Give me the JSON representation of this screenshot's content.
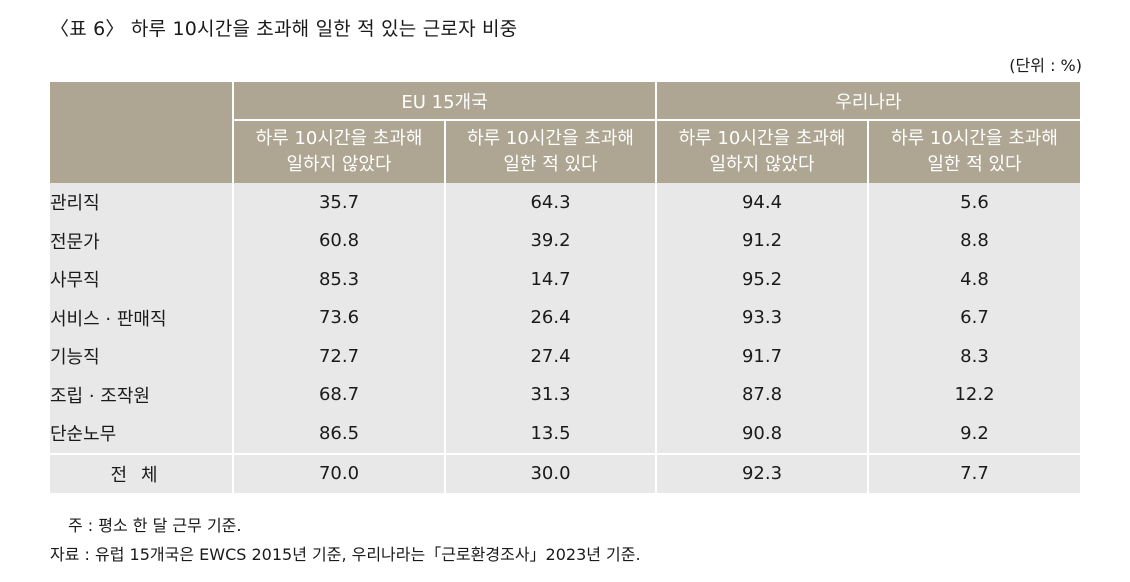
{
  "title": "〈표 6〉 하루 10시간을 초과해 일한 적 있는 근로자 비중",
  "unit": "(단위 : %)",
  "table": {
    "group_headers": [
      "EU 15개국",
      "우리나라"
    ],
    "sub_headers": [
      [
        "하루 10시간을 초과해",
        "일하지 않았다"
      ],
      [
        "하루 10시간을 초과해",
        "일한 적 있다"
      ],
      [
        "하루 10시간을 초과해",
        "일하지 않았다"
      ],
      [
        "하루 10시간을 초과해",
        "일한 적 있다"
      ]
    ],
    "rows": [
      {
        "label": "관리직",
        "values": [
          "35.7",
          "64.3",
          "94.4",
          "5.6"
        ]
      },
      {
        "label": "전문가",
        "values": [
          "60.8",
          "39.2",
          "91.2",
          "8.8"
        ]
      },
      {
        "label": "사무직",
        "values": [
          "85.3",
          "14.7",
          "95.2",
          "4.8"
        ]
      },
      {
        "label": "서비스 · 판매직",
        "values": [
          "73.6",
          "26.4",
          "93.3",
          "6.7"
        ]
      },
      {
        "label": "기능직",
        "values": [
          "72.7",
          "27.4",
          "91.7",
          "8.3"
        ]
      },
      {
        "label": "조립 · 조작원",
        "values": [
          "68.7",
          "31.3",
          "87.8",
          "12.2"
        ]
      },
      {
        "label": "단순노무",
        "values": [
          "86.5",
          "13.5",
          "90.8",
          "9.2"
        ]
      }
    ],
    "total": {
      "label": "전체",
      "values": [
        "70.0",
        "30.0",
        "92.3",
        "7.7"
      ]
    }
  },
  "notes": {
    "note": "주 : 평소 한 달 근무 기준.",
    "source": "자료 : 유럽 15개국은 EWCS 2015년 기준, 우리나라는「근로환경조사」2023년 기준."
  },
  "colors": {
    "header_bg": "#aea592",
    "body_bg": "#e8e8e8"
  }
}
